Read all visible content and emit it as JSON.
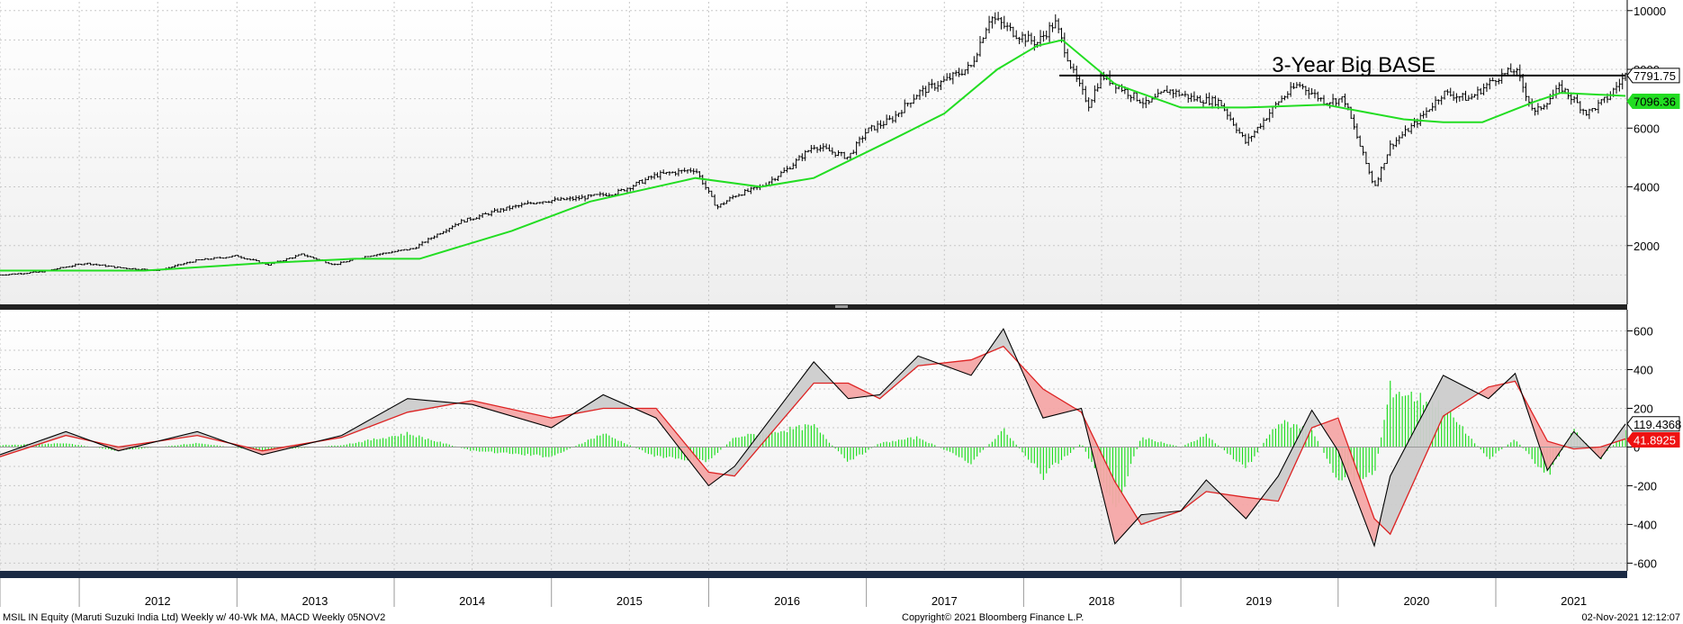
{
  "chart_data": [
    {
      "type": "line",
      "panel": "price",
      "ylim": [
        0,
        10300
      ],
      "yticks": [
        2000,
        4000,
        6000,
        8000,
        10000
      ],
      "ytick_labels": [
        "2000",
        "4000",
        "6000",
        "8000",
        "10000"
      ],
      "x_start": "2011-07-01",
      "x_end": "2021-11-02",
      "grid": true,
      "series": [
        {
          "kind": "weekly-bars",
          "color": "#000000",
          "x": [
            "2011-07-01",
            "2011-10-01",
            "2012-01-15",
            "2012-04-01",
            "2012-07-01",
            "2012-10-01",
            "2013-01-01",
            "2013-03-15",
            "2013-06-01",
            "2013-08-15",
            "2013-11-01",
            "2014-02-15",
            "2014-04-01",
            "2014-06-01",
            "2014-09-01",
            "2014-12-01",
            "2015-03-01",
            "2015-06-01",
            "2015-09-01",
            "2015-12-01",
            "2016-01-20",
            "2016-03-01",
            "2016-05-01",
            "2016-07-01",
            "2016-09-01",
            "2016-11-20",
            "2017-01-01",
            "2017-03-01",
            "2017-05-01",
            "2017-07-01",
            "2017-09-01",
            "2017-10-15",
            "2017-12-15",
            "2018-02-01",
            "2018-03-15",
            "2018-05-01",
            "2018-06-01",
            "2018-07-01",
            "2018-09-01",
            "2018-10-15",
            "2018-12-01",
            "2019-02-01",
            "2019-04-01",
            "2019-06-01",
            "2019-08-15",
            "2019-10-01",
            "2019-12-01",
            "2020-01-15",
            "2020-03-01",
            "2020-03-25",
            "2020-05-01",
            "2020-07-01",
            "2020-09-01",
            "2020-11-01",
            "2021-01-01",
            "2021-02-15",
            "2021-04-01",
            "2021-06-01",
            "2021-08-01",
            "2021-09-15",
            "2021-10-29"
          ],
          "values": [
            1000,
            1100,
            1400,
            1250,
            1150,
            1500,
            1650,
            1350,
            1700,
            1350,
            1650,
            1900,
            2300,
            2800,
            3200,
            3500,
            3600,
            3800,
            4400,
            4600,
            3300,
            3700,
            4000,
            4600,
            5400,
            5000,
            5900,
            6300,
            7200,
            7600,
            8100,
            9800,
            9200,
            8900,
            9600,
            7700,
            6800,
            7800,
            7200,
            6800,
            7300,
            7000,
            6900,
            5500,
            6900,
            7500,
            6900,
            7000,
            5000,
            4000,
            5400,
            6200,
            7200,
            7000,
            7700,
            8000,
            6500,
            7400,
            6500,
            7000,
            7791.75
          ]
        },
        {
          "name": "40-Wk MA",
          "color": "#22dd22",
          "x": [
            "2011-07-01",
            "2012-06-01",
            "2013-03-01",
            "2013-10-01",
            "2014-03-01",
            "2014-10-01",
            "2015-04-01",
            "2015-12-01",
            "2016-05-01",
            "2016-09-01",
            "2017-03-01",
            "2017-07-01",
            "2017-11-01",
            "2018-02-01",
            "2018-04-01",
            "2018-08-01",
            "2019-01-01",
            "2019-06-01",
            "2019-12-01",
            "2020-06-01",
            "2020-09-01",
            "2020-12-01",
            "2021-04-01",
            "2021-06-01",
            "2021-10-29"
          ],
          "values": [
            1150,
            1150,
            1400,
            1550,
            1550,
            2500,
            3500,
            4300,
            4000,
            4300,
            5600,
            6500,
            8000,
            8800,
            9000,
            7500,
            6700,
            6700,
            6800,
            6300,
            6200,
            6200,
            6900,
            7200,
            7096.36
          ]
        }
      ],
      "annotation": {
        "text": "3-Year Big BASE",
        "level": 7791.75,
        "from": "2018-03-25",
        "to": "2021-10-29"
      },
      "last_values": [
        {
          "label": "7791.75",
          "value": 7791.75,
          "bg": "#ffffff",
          "fg": "#000000",
          "border": "#000000"
        },
        {
          "label": "7096.36",
          "value": 7096.36,
          "bg": "#22dd22",
          "fg": "#000000",
          "border": "#22dd22"
        }
      ]
    },
    {
      "type": "line",
      "panel": "macd",
      "ylim": [
        -640,
        700
      ],
      "yticks": [
        -600,
        -400,
        -200,
        0,
        200,
        400,
        600
      ],
      "ytick_labels": [
        "-600",
        "-400",
        "-200",
        "0",
        "200",
        "400",
        "600"
      ],
      "x_start": "2011-07-01",
      "x_end": "2021-11-02",
      "grid": true,
      "series": [
        {
          "name": "MACD",
          "color": "#000000",
          "x": [
            "2011-07-01",
            "2011-12-01",
            "2012-04-01",
            "2012-10-01",
            "2013-03-01",
            "2013-09-01",
            "2014-02-01",
            "2014-07-01",
            "2015-01-01",
            "2015-05-01",
            "2015-09-01",
            "2016-01-01",
            "2016-03-01",
            "2016-09-01",
            "2016-11-20",
            "2017-02-01",
            "2017-05-01",
            "2017-09-01",
            "2017-11-15",
            "2018-02-15",
            "2018-05-15",
            "2018-08-01",
            "2018-10-01",
            "2019-01-01",
            "2019-03-01",
            "2019-06-01",
            "2019-08-15",
            "2019-11-01",
            "2020-01-01",
            "2020-03-25",
            "2020-05-01",
            "2020-09-01",
            "2020-12-15",
            "2021-02-15",
            "2021-05-01",
            "2021-07-01",
            "2021-09-01",
            "2021-10-29"
          ],
          "values": [
            -40,
            80,
            -20,
            80,
            -40,
            60,
            250,
            220,
            100,
            270,
            150,
            -200,
            -100,
            440,
            250,
            270,
            470,
            370,
            610,
            150,
            200,
            -500,
            -350,
            -330,
            -170,
            -370,
            -150,
            190,
            -20,
            -510,
            -150,
            370,
            250,
            380,
            -120,
            80,
            -60,
            119.4368
          ]
        },
        {
          "name": "Signal",
          "color": "#dd2222",
          "x": [
            "2011-07-01",
            "2011-12-01",
            "2012-04-01",
            "2012-10-01",
            "2013-03-01",
            "2013-09-01",
            "2014-02-01",
            "2014-07-01",
            "2015-01-01",
            "2015-05-01",
            "2015-09-01",
            "2016-01-01",
            "2016-03-01",
            "2016-09-01",
            "2016-11-20",
            "2017-02-01",
            "2017-05-01",
            "2017-09-01",
            "2017-11-15",
            "2018-02-15",
            "2018-05-15",
            "2018-08-01",
            "2018-10-01",
            "2019-01-01",
            "2019-03-01",
            "2019-06-01",
            "2019-08-15",
            "2019-11-01",
            "2020-01-01",
            "2020-03-25",
            "2020-05-01",
            "2020-09-01",
            "2020-12-15",
            "2021-02-15",
            "2021-05-01",
            "2021-07-01",
            "2021-09-01",
            "2021-10-29"
          ],
          "values": [
            -50,
            60,
            0,
            60,
            -20,
            50,
            180,
            240,
            150,
            200,
            200,
            -130,
            -150,
            330,
            330,
            250,
            420,
            450,
            520,
            300,
            180,
            -180,
            -400,
            -330,
            -230,
            -260,
            -280,
            100,
            150,
            -370,
            -450,
            160,
            310,
            340,
            30,
            -10,
            0,
            41.8925
          ]
        }
      ],
      "histogram": {
        "color": "#22dd22",
        "x": [
          "2011-07-01",
          "2011-12-01",
          "2012-04-01",
          "2012-10-01",
          "2013-03-01",
          "2013-09-01",
          "2014-02-01",
          "2014-07-01",
          "2015-01-01",
          "2015-05-01",
          "2015-09-01",
          "2016-01-01",
          "2016-03-01",
          "2016-09-01",
          "2016-11-20",
          "2017-02-01",
          "2017-05-01",
          "2017-09-01",
          "2017-11-15",
          "2018-02-15",
          "2018-05-15",
          "2018-08-01",
          "2018-10-01",
          "2019-01-01",
          "2019-03-01",
          "2019-06-01",
          "2019-08-15",
          "2019-11-01",
          "2020-01-01",
          "2020-03-25",
          "2020-05-01",
          "2020-09-01",
          "2020-12-15",
          "2021-02-15",
          "2021-05-01",
          "2021-07-01",
          "2021-09-01",
          "2021-10-29"
        ],
        "values": [
          10,
          20,
          -20,
          20,
          -20,
          10,
          70,
          -20,
          -50,
          70,
          -50,
          -70,
          50,
          110,
          -80,
          20,
          50,
          -80,
          90,
          -150,
          20,
          -320,
          50,
          0,
          60,
          -110,
          130,
          90,
          -170,
          -140,
          300,
          210,
          -60,
          40,
          -150,
          90,
          -60,
          77.5
        ]
      },
      "last_values": [
        {
          "label": "119.4368",
          "value": 119.4368,
          "bg": "#ffffff",
          "fg": "#000000",
          "border": "#000000"
        },
        {
          "label": "41.8925",
          "value": 41.8925,
          "bg": "#ee1111",
          "fg": "#ffffff",
          "border": "#ee1111"
        }
      ]
    }
  ],
  "x_axis": {
    "years": [
      "2012",
      "2013",
      "2014",
      "2015",
      "2016",
      "2017",
      "2018",
      "2019",
      "2020",
      "2021"
    ]
  },
  "footer": {
    "left": "MSIL IN Equity (Maruti Suzuki India Ltd) Weekly w/ 40-Wk MA, MACD  Weekly 05NOV2",
    "center": "Copyright© 2021 Bloomberg Finance L.P.",
    "right": "02-Nov-2021 12:12:07"
  }
}
